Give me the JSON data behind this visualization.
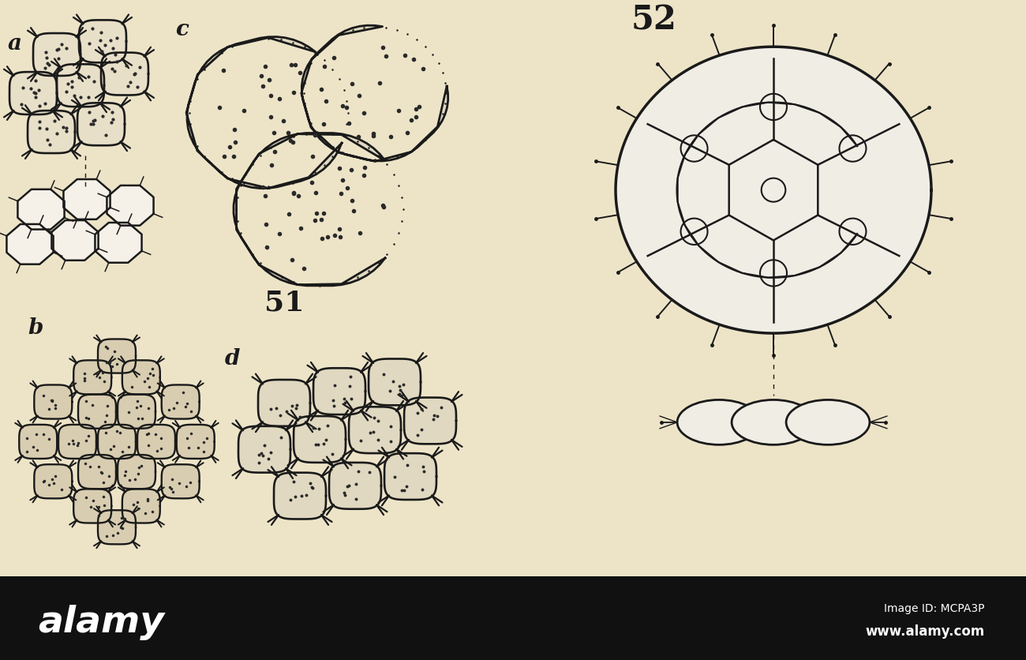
{
  "bg_color": "#EDE4C8",
  "cell_fill_a_upper": "#E8DFC8",
  "cell_fill_a_lower": "#F5F0E8",
  "cell_fill_b": "#D8CDB0",
  "cell_fill_c": "#E0D8C0",
  "cell_fill_d": "#E0D8C0",
  "cell_fill_52": "#F0EDE5",
  "line_color": "#1a1a1a",
  "dot_color": "#2a2a2a",
  "label_a": "a",
  "label_b": "b",
  "label_c": "c",
  "label_d": "d",
  "label_51": "51",
  "label_52": "52",
  "alamy_text": "alamy",
  "alamy_image_id": "Image ID: MCPA3P",
  "alamy_url": "www.alamy.com",
  "bar_color": "#111111"
}
